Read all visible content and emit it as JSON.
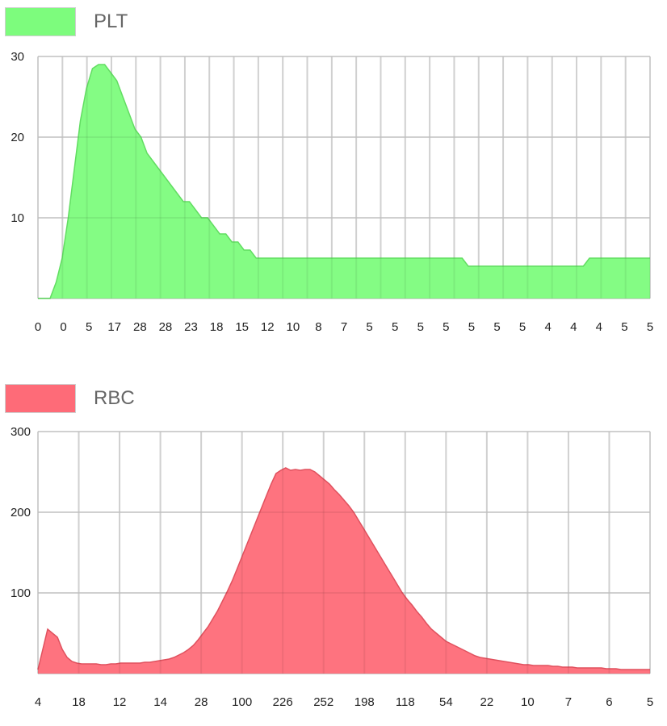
{
  "chart_data": [
    {
      "type": "area",
      "legend": "PLT",
      "color": "#7dfc7d",
      "line_color": "#62dd62",
      "ylim": [
        0,
        30
      ],
      "y_ticks": [
        "30",
        "20",
        "10"
      ],
      "x_tick_labels": [
        "0",
        "0",
        "5",
        "17",
        "28",
        "28",
        "23",
        "18",
        "15",
        "12",
        "10",
        "8",
        "7",
        "5",
        "5",
        "5",
        "5",
        "5",
        "5",
        "5",
        "4",
        "4",
        "4",
        "5",
        "5"
      ],
      "values": [
        0,
        0,
        0,
        2,
        5,
        10,
        16,
        22,
        26,
        28.5,
        29,
        29,
        28,
        27,
        25,
        23,
        21,
        20,
        18,
        17,
        16,
        15,
        14,
        13,
        12,
        12,
        11,
        10,
        10,
        9,
        8,
        8,
        7,
        7,
        6,
        6,
        5,
        5,
        5,
        5,
        5,
        5,
        5,
        5,
        5,
        5,
        5,
        5,
        5,
        5,
        5,
        5,
        5,
        5,
        5,
        5,
        5,
        5,
        5,
        5,
        5,
        5,
        5,
        5,
        5,
        5,
        5,
        5,
        5,
        5,
        5,
        4,
        4,
        4,
        4,
        4,
        4,
        4,
        4,
        4,
        4,
        4,
        4,
        4,
        4,
        4,
        4,
        4,
        4,
        4,
        4,
        5,
        5,
        5,
        5,
        5,
        5,
        5,
        5,
        5,
        5,
        5
      ]
    },
    {
      "type": "area",
      "legend": "RBC",
      "color": "#fe6b78",
      "line_color": "#e0515e",
      "ylim": [
        0,
        300
      ],
      "y_ticks": [
        "300",
        "200",
        "100"
      ],
      "x_tick_labels": [
        "4",
        "18",
        "12",
        "14",
        "28",
        "100",
        "226",
        "252",
        "198",
        "118",
        "54",
        "22",
        "10",
        "7",
        "6",
        "5"
      ],
      "values": [
        5,
        30,
        55,
        50,
        45,
        30,
        20,
        15,
        13,
        12,
        12,
        12,
        12,
        11,
        11,
        12,
        12,
        13,
        13,
        13,
        13,
        13,
        14,
        14,
        15,
        16,
        17,
        18,
        20,
        23,
        26,
        30,
        35,
        42,
        50,
        58,
        68,
        78,
        90,
        102,
        115,
        130,
        145,
        160,
        175,
        190,
        205,
        220,
        235,
        248,
        252,
        255,
        252,
        253,
        252,
        253,
        253,
        250,
        245,
        240,
        235,
        228,
        222,
        215,
        208,
        200,
        190,
        180,
        170,
        160,
        150,
        140,
        130,
        120,
        110,
        100,
        92,
        85,
        77,
        70,
        62,
        55,
        50,
        45,
        40,
        37,
        34,
        31,
        28,
        25,
        22,
        20,
        19,
        18,
        17,
        16,
        15,
        14,
        13,
        12,
        11,
        11,
        10,
        10,
        10,
        10,
        9,
        9,
        8,
        8,
        8,
        7,
        7,
        7,
        7,
        7,
        7,
        6,
        6,
        6,
        5,
        5,
        5,
        5,
        5,
        5,
        5
      ]
    }
  ]
}
